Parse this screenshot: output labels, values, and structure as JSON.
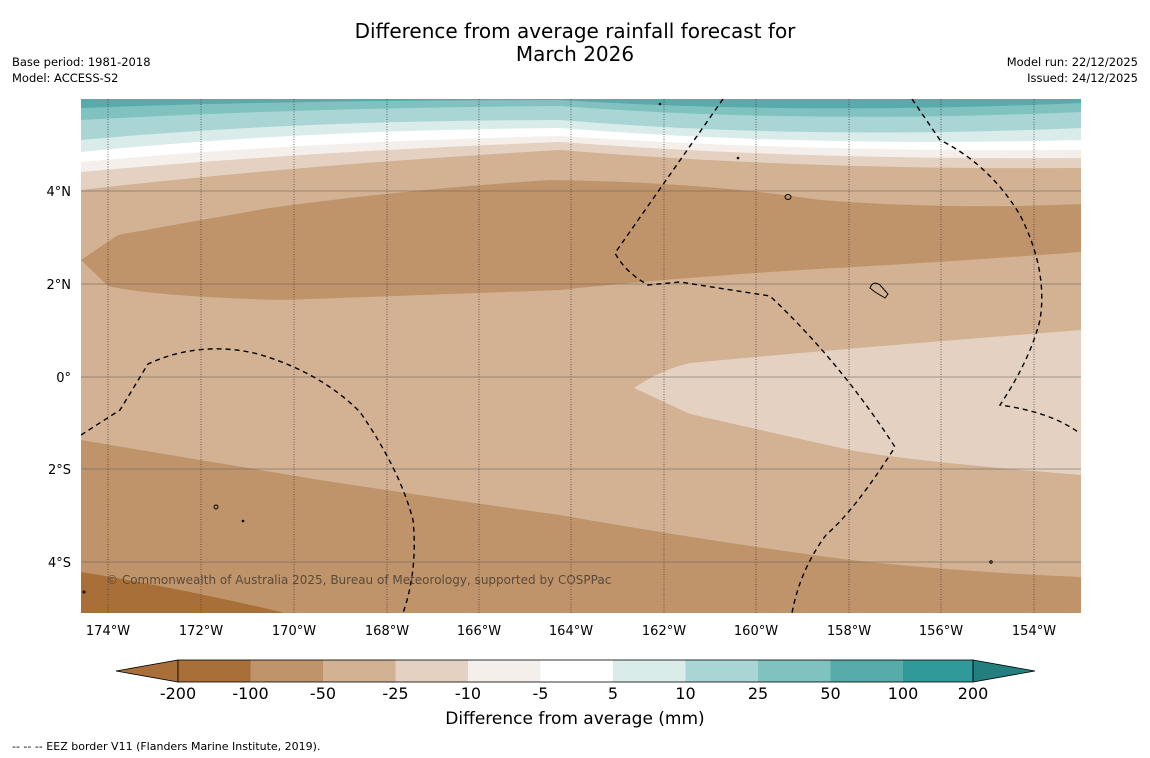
{
  "title": {
    "line1": "Difference from average rainfall forecast for",
    "line2": "March 2026"
  },
  "meta": {
    "base_period": "Base period: 1981-2018",
    "model": "Model: ACCESS-S2",
    "model_run": "Model run: 22/12/2025",
    "issued": "Issued: 24/12/2025"
  },
  "map": {
    "lat_labels": [
      "4°N",
      "2°N",
      "0°",
      "2°S",
      "4°S"
    ],
    "lon_labels": [
      "174°W",
      "172°W",
      "170°W",
      "168°W",
      "166°W",
      "164°W",
      "162°W",
      "160°W",
      "158°W",
      "156°W",
      "154°W"
    ],
    "copyright": "© Commonwealth of Australia 2025, Bureau of Meteorology, supported by COSPPac"
  },
  "colorbar": {
    "ticks": [
      "-200",
      "-100",
      "-50",
      "-25",
      "-10",
      "-5",
      "5",
      "10",
      "25",
      "50",
      "100",
      "200"
    ],
    "colors": [
      "#a87038",
      "#bf946a",
      "#d3b193",
      "#e4d1c1",
      "#f4efea",
      "#ffffff",
      "#d9ecea",
      "#a9d6d5",
      "#7fc2c0",
      "#57abaa",
      "#309999",
      "#237f7f"
    ],
    "label": "Difference from average (mm)"
  },
  "footer": {
    "legend": "--  --  -- EEZ border V11 (Flanders Marine Institute, 2019)."
  }
}
